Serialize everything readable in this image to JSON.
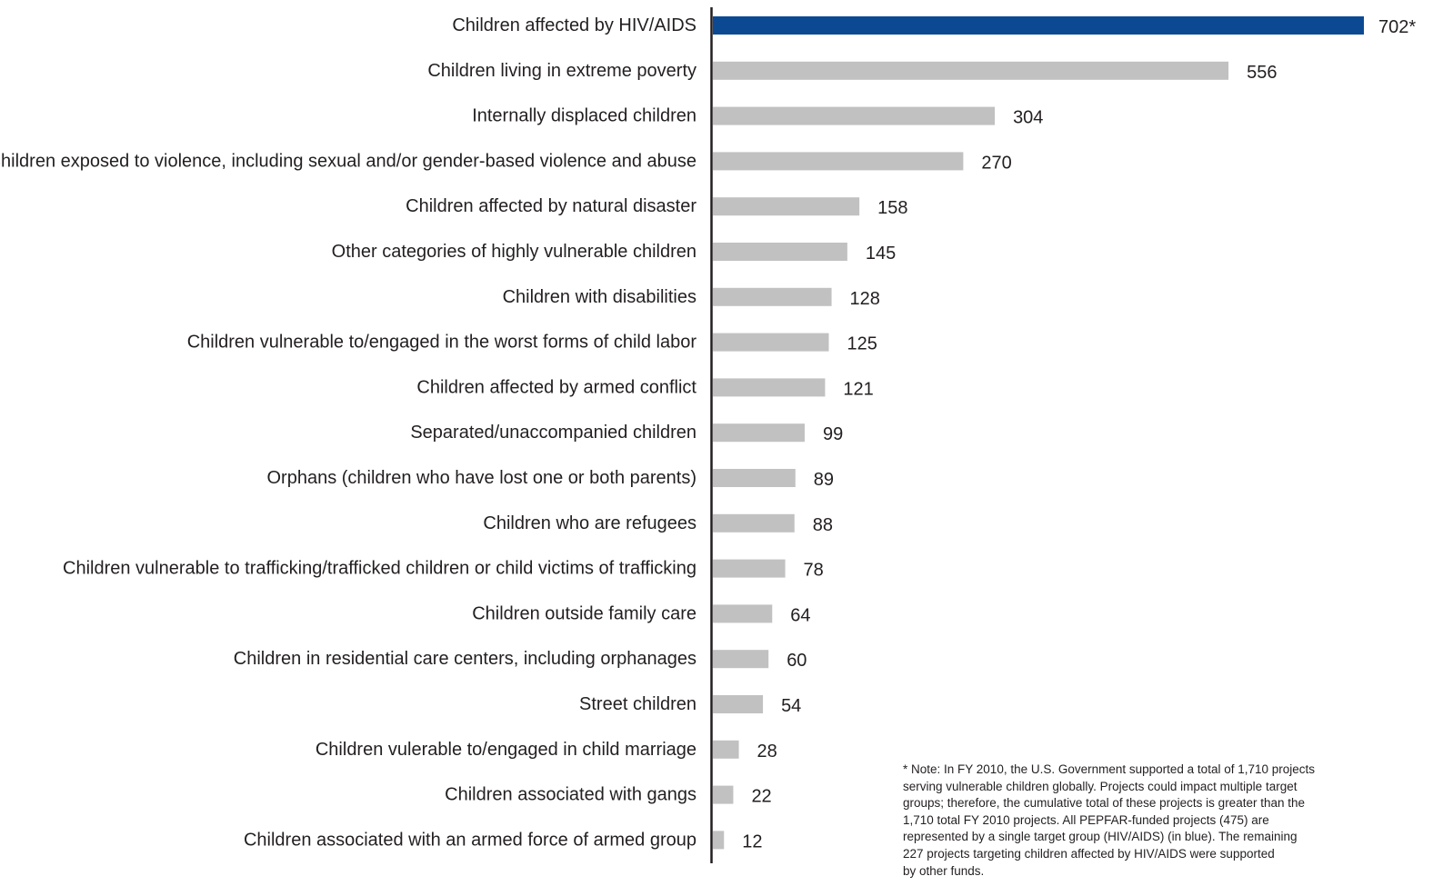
{
  "chart_data": {
    "type": "bar",
    "orientation": "horizontal",
    "categories": [
      "Children affected by HIV/AIDS",
      "Children living in extreme poverty",
      "Internally displaced children",
      "Children exposed to violence, including sexual and/or gender-based violence and abuse",
      "Children affected by natural disaster",
      "Other categories of highly vulnerable children",
      "Children with disabilities",
      "Children vulnerable to/engaged in the worst forms of child labor",
      "Children affected by armed conflict",
      "Separated/unaccompanied children",
      "Orphans (children who have lost one or both parents)",
      "Children who are refugees",
      "Children vulnerable to trafficking/trafficked children or child victims of trafficking",
      "Children outside family care",
      "Children in residential care centers, including orphanages",
      "Street children",
      "Children vulerable to/engaged in child marriage",
      "Children associated with gangs",
      "Children associated with an armed force of armed group"
    ],
    "values": [
      702,
      556,
      304,
      270,
      158,
      145,
      128,
      125,
      121,
      99,
      89,
      88,
      78,
      64,
      60,
      54,
      28,
      22,
      12
    ],
    "value_labels": [
      "702*",
      "556",
      "304",
      "270",
      "158",
      "145",
      "128",
      "125",
      "121",
      "99",
      "89",
      "88",
      "78",
      "64",
      "60",
      "54",
      "28",
      "22",
      "12"
    ],
    "highlight_index": 0,
    "colors": {
      "highlight": "#0b4a93",
      "default": "#c1c1c1",
      "axis": "#231f20",
      "text": "#231f20"
    },
    "xlim": [
      0,
      702
    ],
    "grid": false,
    "title": "",
    "xlabel": "",
    "ylabel": ""
  },
  "note": "* Note: In FY 2010, the U.S. Government supported a total of 1,710 projects\nserving vulnerable children globally.  Projects could impact multiple target\ngroups; therefore, the cumulative total of these projects is greater than the\n1,710 total FY 2010 projects.  All PEPFAR-funded projects (475) are\nrepresented by a single target group (HIV/AIDS) (in blue).  The remaining\n227 projects targeting children affected by HIV/AIDS were supported\nby other funds."
}
